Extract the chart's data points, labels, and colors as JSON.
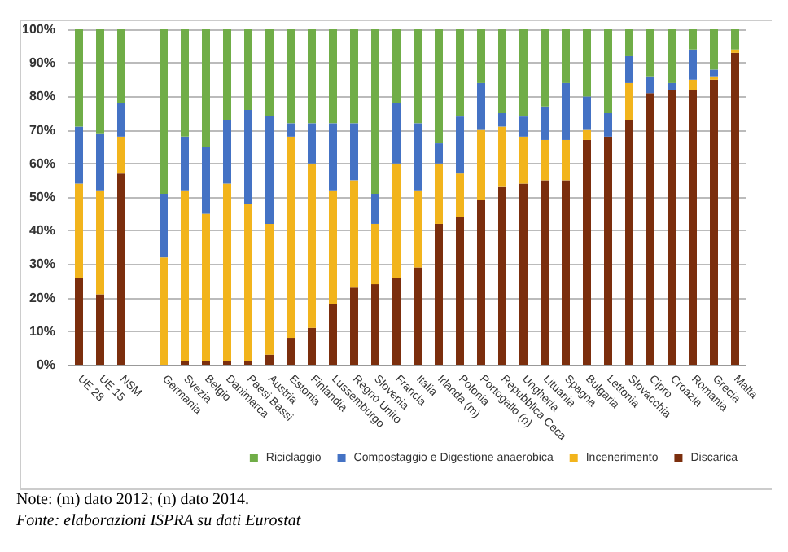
{
  "chart_data": {
    "type": "bar",
    "stacked": true,
    "categories": [
      "UE 28",
      "UE 15",
      "NSM",
      null,
      "Germania",
      "Svezia",
      "Belgio",
      "Danimarca",
      "Paesi Bassi",
      "Austria",
      "Estonia",
      "Finlandia",
      "Lussemburgo",
      "Regno Unito",
      "Slovenia",
      "Francia",
      "Italia",
      "Irlanda (m)",
      "Polonia",
      "Portogallo (n)",
      "Repubblica Ceca",
      "Ungheria",
      "Lituania",
      "Spagna",
      "Bulgaria",
      "Lettonia",
      "Slovacchia",
      "Cipro",
      "Croazia",
      "Romania",
      "Grecia",
      "Malta"
    ],
    "series": [
      {
        "name": "Discarica",
        "color": "#7b2e0d",
        "values": [
          26,
          21,
          57,
          null,
          0,
          1,
          1,
          1,
          1,
          3,
          8,
          11,
          18,
          23,
          24,
          26,
          29,
          42,
          44,
          49,
          53,
          54,
          55,
          55,
          67,
          68,
          73,
          81,
          82,
          82,
          85,
          93
        ]
      },
      {
        "name": "Incenerimento",
        "color": "#f2b41c",
        "values": [
          28,
          31,
          11,
          null,
          32,
          51,
          44,
          53,
          47,
          39,
          60,
          49,
          34,
          32,
          18,
          34,
          23,
          18,
          13,
          21,
          18,
          14,
          12,
          12,
          3,
          0,
          11,
          0,
          0,
          3,
          1,
          1
        ]
      },
      {
        "name": "Compostaggio e Digestione anaerobica",
        "color": "#4472c4",
        "values": [
          17,
          17,
          10,
          null,
          19,
          16,
          20,
          19,
          28,
          32,
          4,
          12,
          20,
          17,
          9,
          18,
          20,
          6,
          17,
          14,
          4,
          6,
          10,
          17,
          10,
          7,
          8,
          5,
          2,
          9,
          2,
          0
        ]
      },
      {
        "name": "Riciclaggio",
        "color": "#70ad47",
        "values": [
          29,
          31,
          22,
          null,
          49,
          32,
          35,
          27,
          24,
          26,
          28,
          28,
          28,
          28,
          49,
          22,
          28,
          34,
          26,
          16,
          25,
          26,
          23,
          16,
          20,
          25,
          8,
          14,
          16,
          6,
          12,
          6
        ]
      }
    ],
    "ylim": [
      0,
      100
    ],
    "yticks": [
      {
        "value": 0,
        "label": "0%"
      },
      {
        "value": 10,
        "label": "10%"
      },
      {
        "value": 20,
        "label": "20%"
      },
      {
        "value": 30,
        "label": "30%"
      },
      {
        "value": 40,
        "label": "40%"
      },
      {
        "value": 50,
        "label": "50%"
      },
      {
        "value": 60,
        "label": "60%"
      },
      {
        "value": 70,
        "label": "70%"
      },
      {
        "value": 80,
        "label": "80%"
      },
      {
        "value": 90,
        "label": "90%"
      },
      {
        "value": 100,
        "label": "100%"
      }
    ],
    "grid": "y",
    "legend": "bottom right",
    "annotations": [
      "Note: (m) dato 2012; (n) dato 2014.",
      "Fonte: elaborazioni ISPRA su dati Eurostat"
    ]
  }
}
